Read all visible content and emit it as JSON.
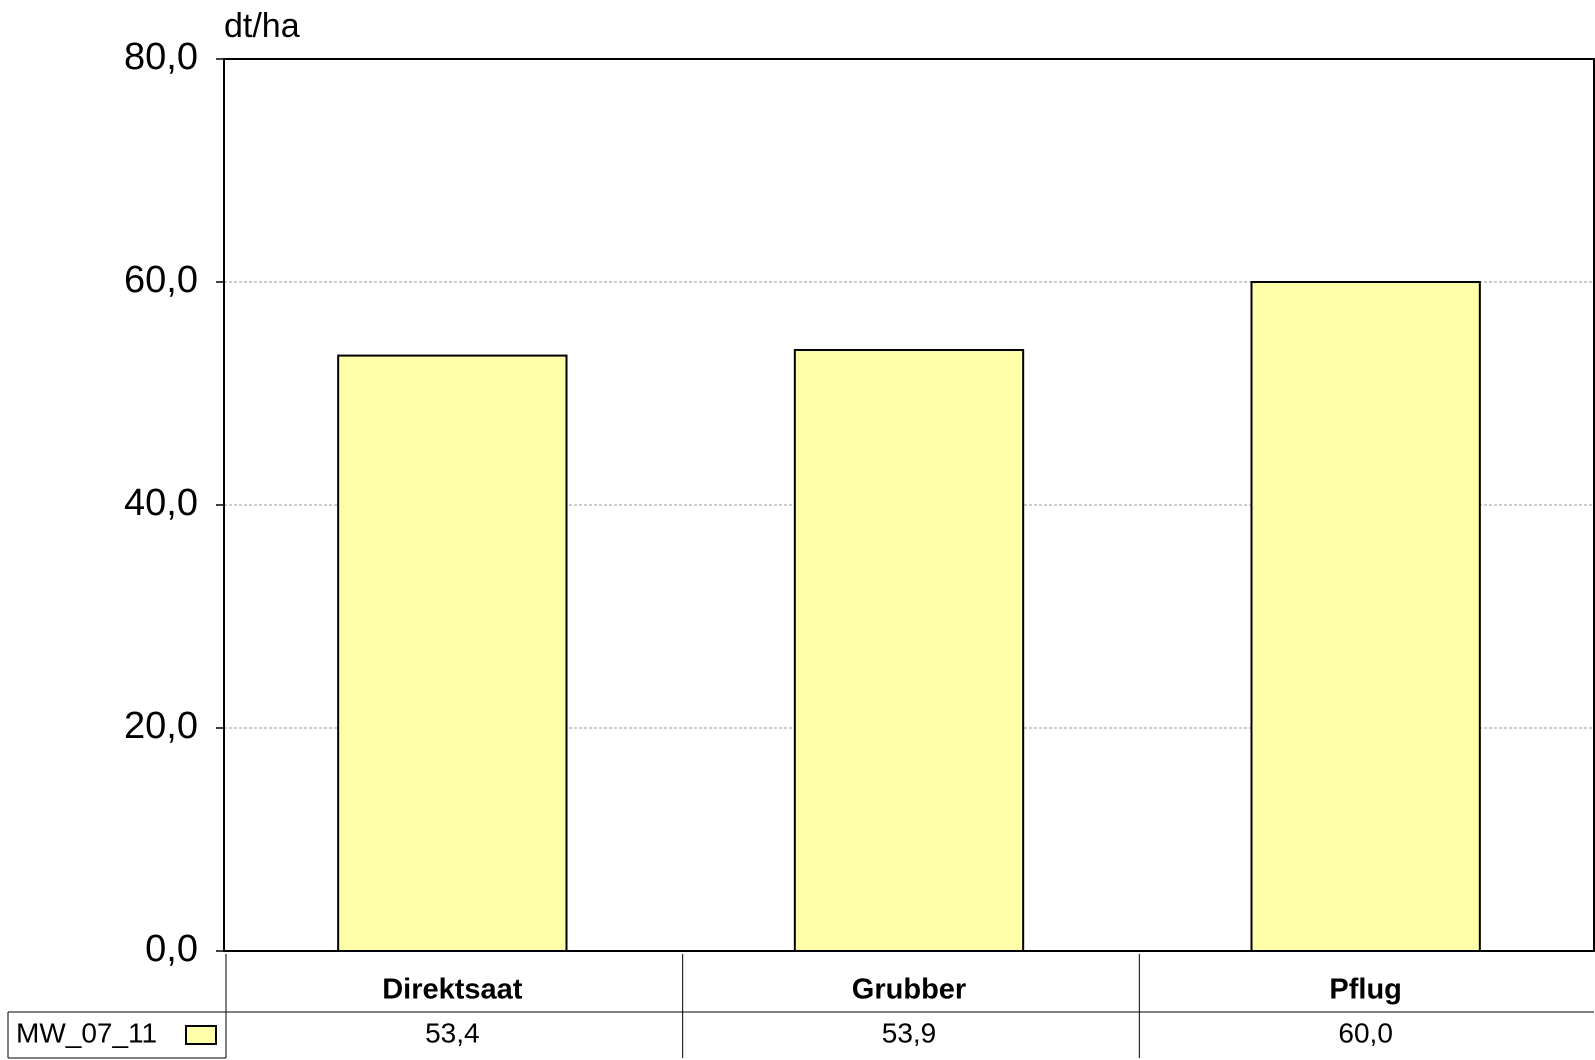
{
  "chart_data": {
    "type": "bar",
    "y_axis_label": "dt/ha",
    "categories": [
      "Direktsaat",
      "Grubber",
      "Pflug"
    ],
    "series": [
      {
        "name": "MW_07_11",
        "color": "#ffffaa",
        "values": [
          53.4,
          53.9,
          60.0
        ],
        "value_labels": [
          "53,4",
          "53,9",
          "60,0"
        ]
      }
    ],
    "ylim": [
      0,
      80
    ],
    "yticks": [
      {
        "value": 0,
        "label": "0,0"
      },
      {
        "value": 20,
        "label": "20,0"
      },
      {
        "value": 40,
        "label": "40,0"
      },
      {
        "value": 60,
        "label": "60,0"
      },
      {
        "value": 80,
        "label": "80,0"
      }
    ],
    "grid": true
  }
}
